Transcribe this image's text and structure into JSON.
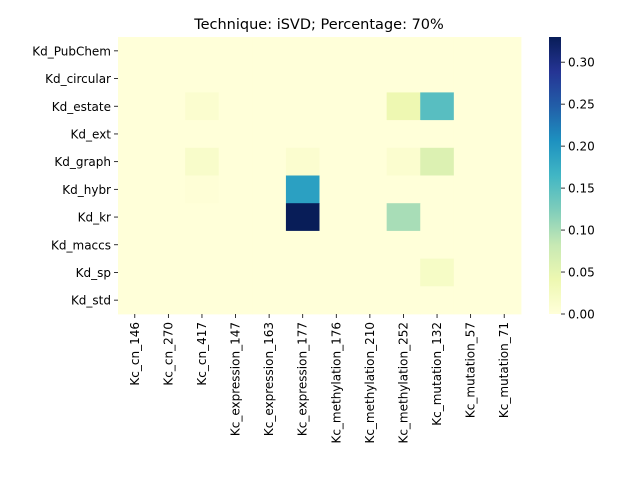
{
  "chart_data": {
    "type": "heatmap",
    "title": "Technique: iSVD; Percentage: 70%",
    "xlabel": "",
    "ylabel": "",
    "x_categories": [
      "Kc_cn_146",
      "Kc_cn_270",
      "Kc_cn_417",
      "Kc_expression_147",
      "Kc_expression_163",
      "Kc_expression_177",
      "Kc_methylation_176",
      "Kc_methylation_210",
      "Kc_methylation_252",
      "Kc_mutation_132",
      "Kc_mutation_57",
      "Kc_mutation_71"
    ],
    "y_categories": [
      "Kd_PubChem",
      "Kd_circular",
      "Kd_estate",
      "Kd_ext",
      "Kd_graph",
      "Kd_hybr",
      "Kd_kr",
      "Kd_maccs",
      "Kd_sp",
      "Kd_std"
    ],
    "values": [
      [
        0,
        0,
        0,
        0,
        0,
        0,
        0,
        0,
        0,
        0,
        0,
        0
      ],
      [
        0,
        0,
        0,
        0,
        0,
        0,
        0,
        0,
        0,
        0,
        0,
        0
      ],
      [
        0,
        0,
        0.01,
        0,
        0,
        0,
        0,
        0,
        0.04,
        0.15,
        0,
        0
      ],
      [
        0,
        0,
        0,
        0,
        0,
        0,
        0,
        0,
        0,
        0,
        0,
        0
      ],
      [
        0,
        0,
        0.015,
        0,
        0,
        0.01,
        0,
        0,
        0.01,
        0.06,
        0,
        0
      ],
      [
        0,
        0,
        0.003,
        0,
        0,
        0.19,
        0,
        0,
        0,
        0,
        0,
        0
      ],
      [
        0,
        0,
        0,
        0,
        0,
        0.33,
        0,
        0,
        0.1,
        0,
        0,
        0
      ],
      [
        0,
        0,
        0,
        0,
        0,
        0,
        0,
        0,
        0,
        0,
        0,
        0
      ],
      [
        0,
        0,
        0,
        0,
        0,
        0,
        0,
        0,
        0,
        0.02,
        0,
        0
      ],
      [
        0,
        0,
        0,
        0,
        0,
        0,
        0,
        0,
        0,
        0,
        0,
        0
      ]
    ],
    "colorbar": {
      "colormap": "YlGnBu",
      "range": [
        0,
        0.33
      ],
      "ticks": [
        "0.00",
        "0.05",
        "0.10",
        "0.15",
        "0.20",
        "0.25",
        "0.30"
      ]
    }
  }
}
